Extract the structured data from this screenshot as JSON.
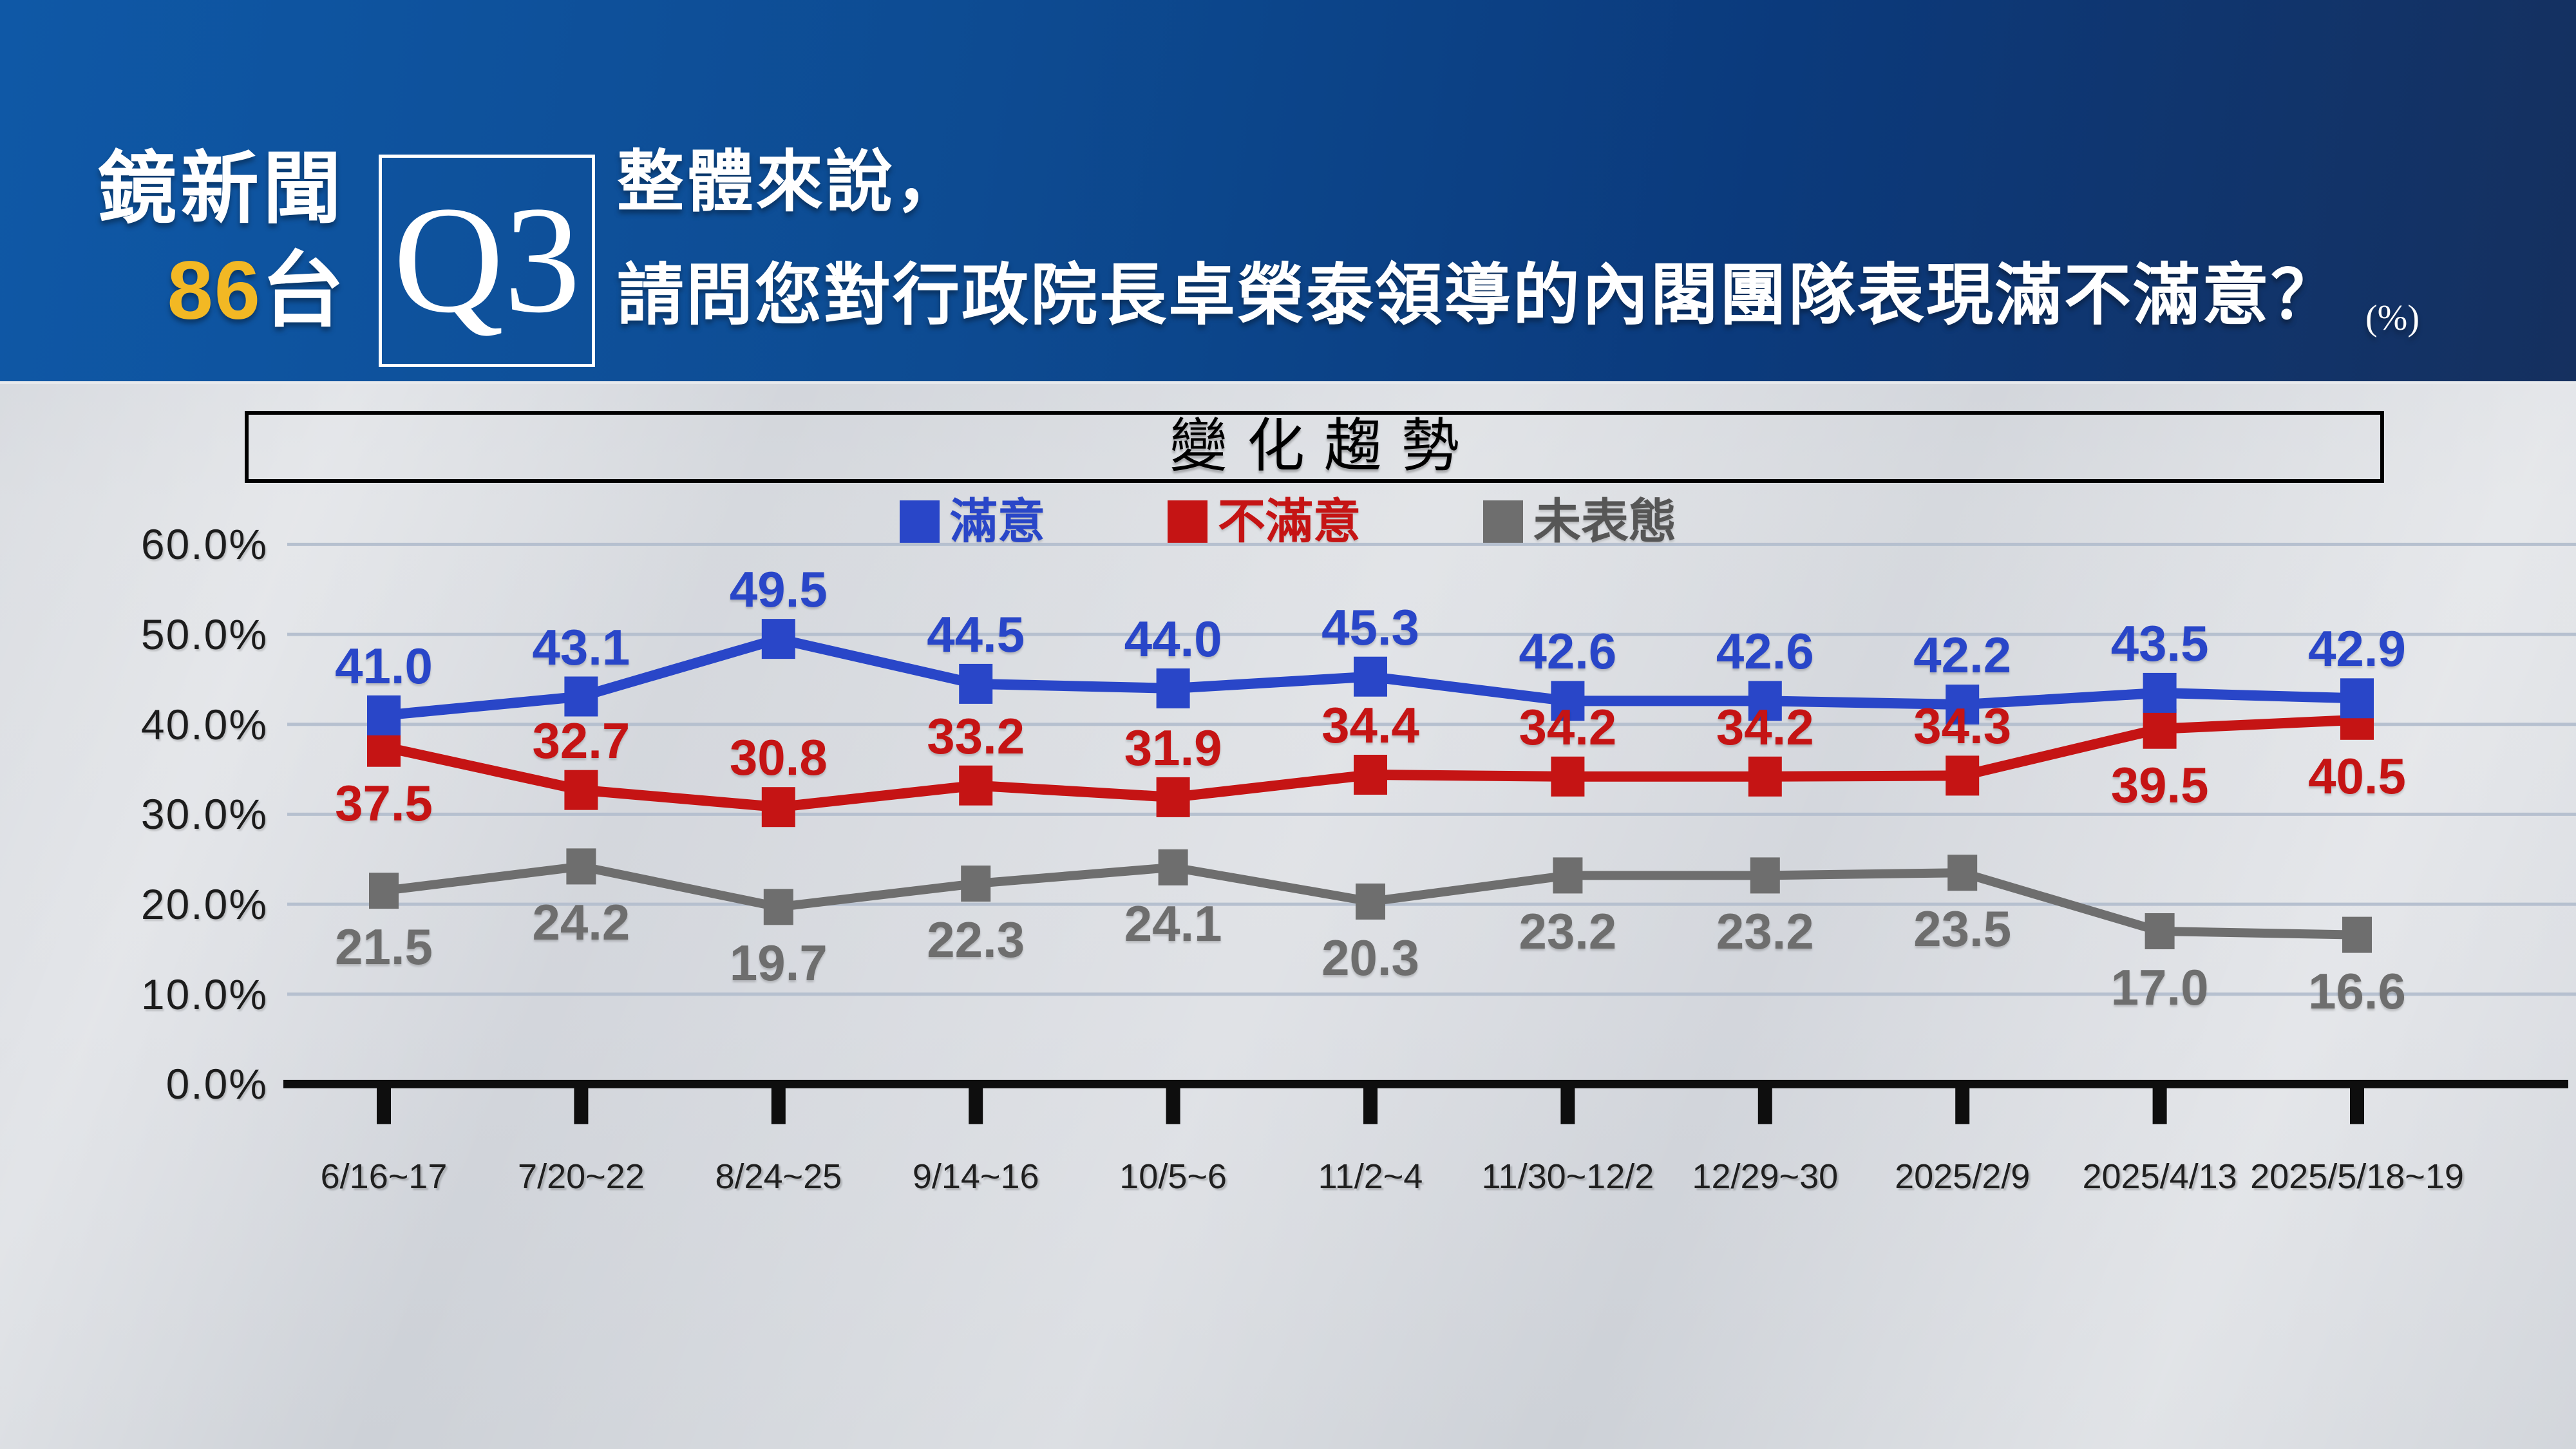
{
  "header": {
    "channel_name": "鏡新聞",
    "channel_number": "86",
    "channel_suffix": "台",
    "question_badge": "Q3",
    "question_line1": "整體來說，",
    "question_line2": "請問您對行政院長卓榮泰領導的內閣團隊表現滿不滿意？",
    "unit_note": "(%)"
  },
  "chart_data": {
    "type": "line",
    "title": "變化趨勢",
    "grid": true,
    "legend_position": "top-center",
    "categories": [
      "6/16~17",
      "7/20~22",
      "8/24~25",
      "9/14~16",
      "10/5~6",
      "11/2~4",
      "11/30~12/2",
      "12/29~30",
      "2025/2/9",
      "2025/4/13",
      "2025/5/18~19"
    ],
    "y_axis": {
      "min": 0,
      "max": 60,
      "step": 10
    },
    "y_tick_labels": [
      "0.0%",
      "10.0%",
      "20.0%",
      "30.0%",
      "40.0%",
      "50.0%",
      "60.0%"
    ],
    "series": [
      {
        "name": "滿意",
        "color": "#2946c8",
        "values": [
          41.0,
          43.1,
          49.5,
          44.5,
          44.0,
          45.3,
          42.6,
          42.6,
          42.2,
          43.5,
          42.9
        ],
        "label_side": [
          "above",
          "above",
          "above",
          "above",
          "above",
          "above",
          "above",
          "above",
          "above",
          "above",
          "above"
        ]
      },
      {
        "name": "不滿意",
        "color": "#c51414",
        "values": [
          37.5,
          32.7,
          30.8,
          33.2,
          31.9,
          34.4,
          34.2,
          34.2,
          34.3,
          39.5,
          40.5
        ],
        "label_side": [
          "below",
          "above",
          "above",
          "above",
          "above",
          "above",
          "above",
          "above",
          "above",
          "below",
          "below"
        ]
      },
      {
        "name": "未表態",
        "color": "#6e6e6e",
        "values": [
          21.5,
          24.2,
          19.7,
          22.3,
          24.1,
          20.3,
          23.2,
          23.2,
          23.5,
          17.0,
          16.6
        ],
        "label_side": [
          "below",
          "below",
          "below",
          "below",
          "below",
          "below",
          "below",
          "below",
          "below",
          "below",
          "below"
        ]
      }
    ]
  }
}
